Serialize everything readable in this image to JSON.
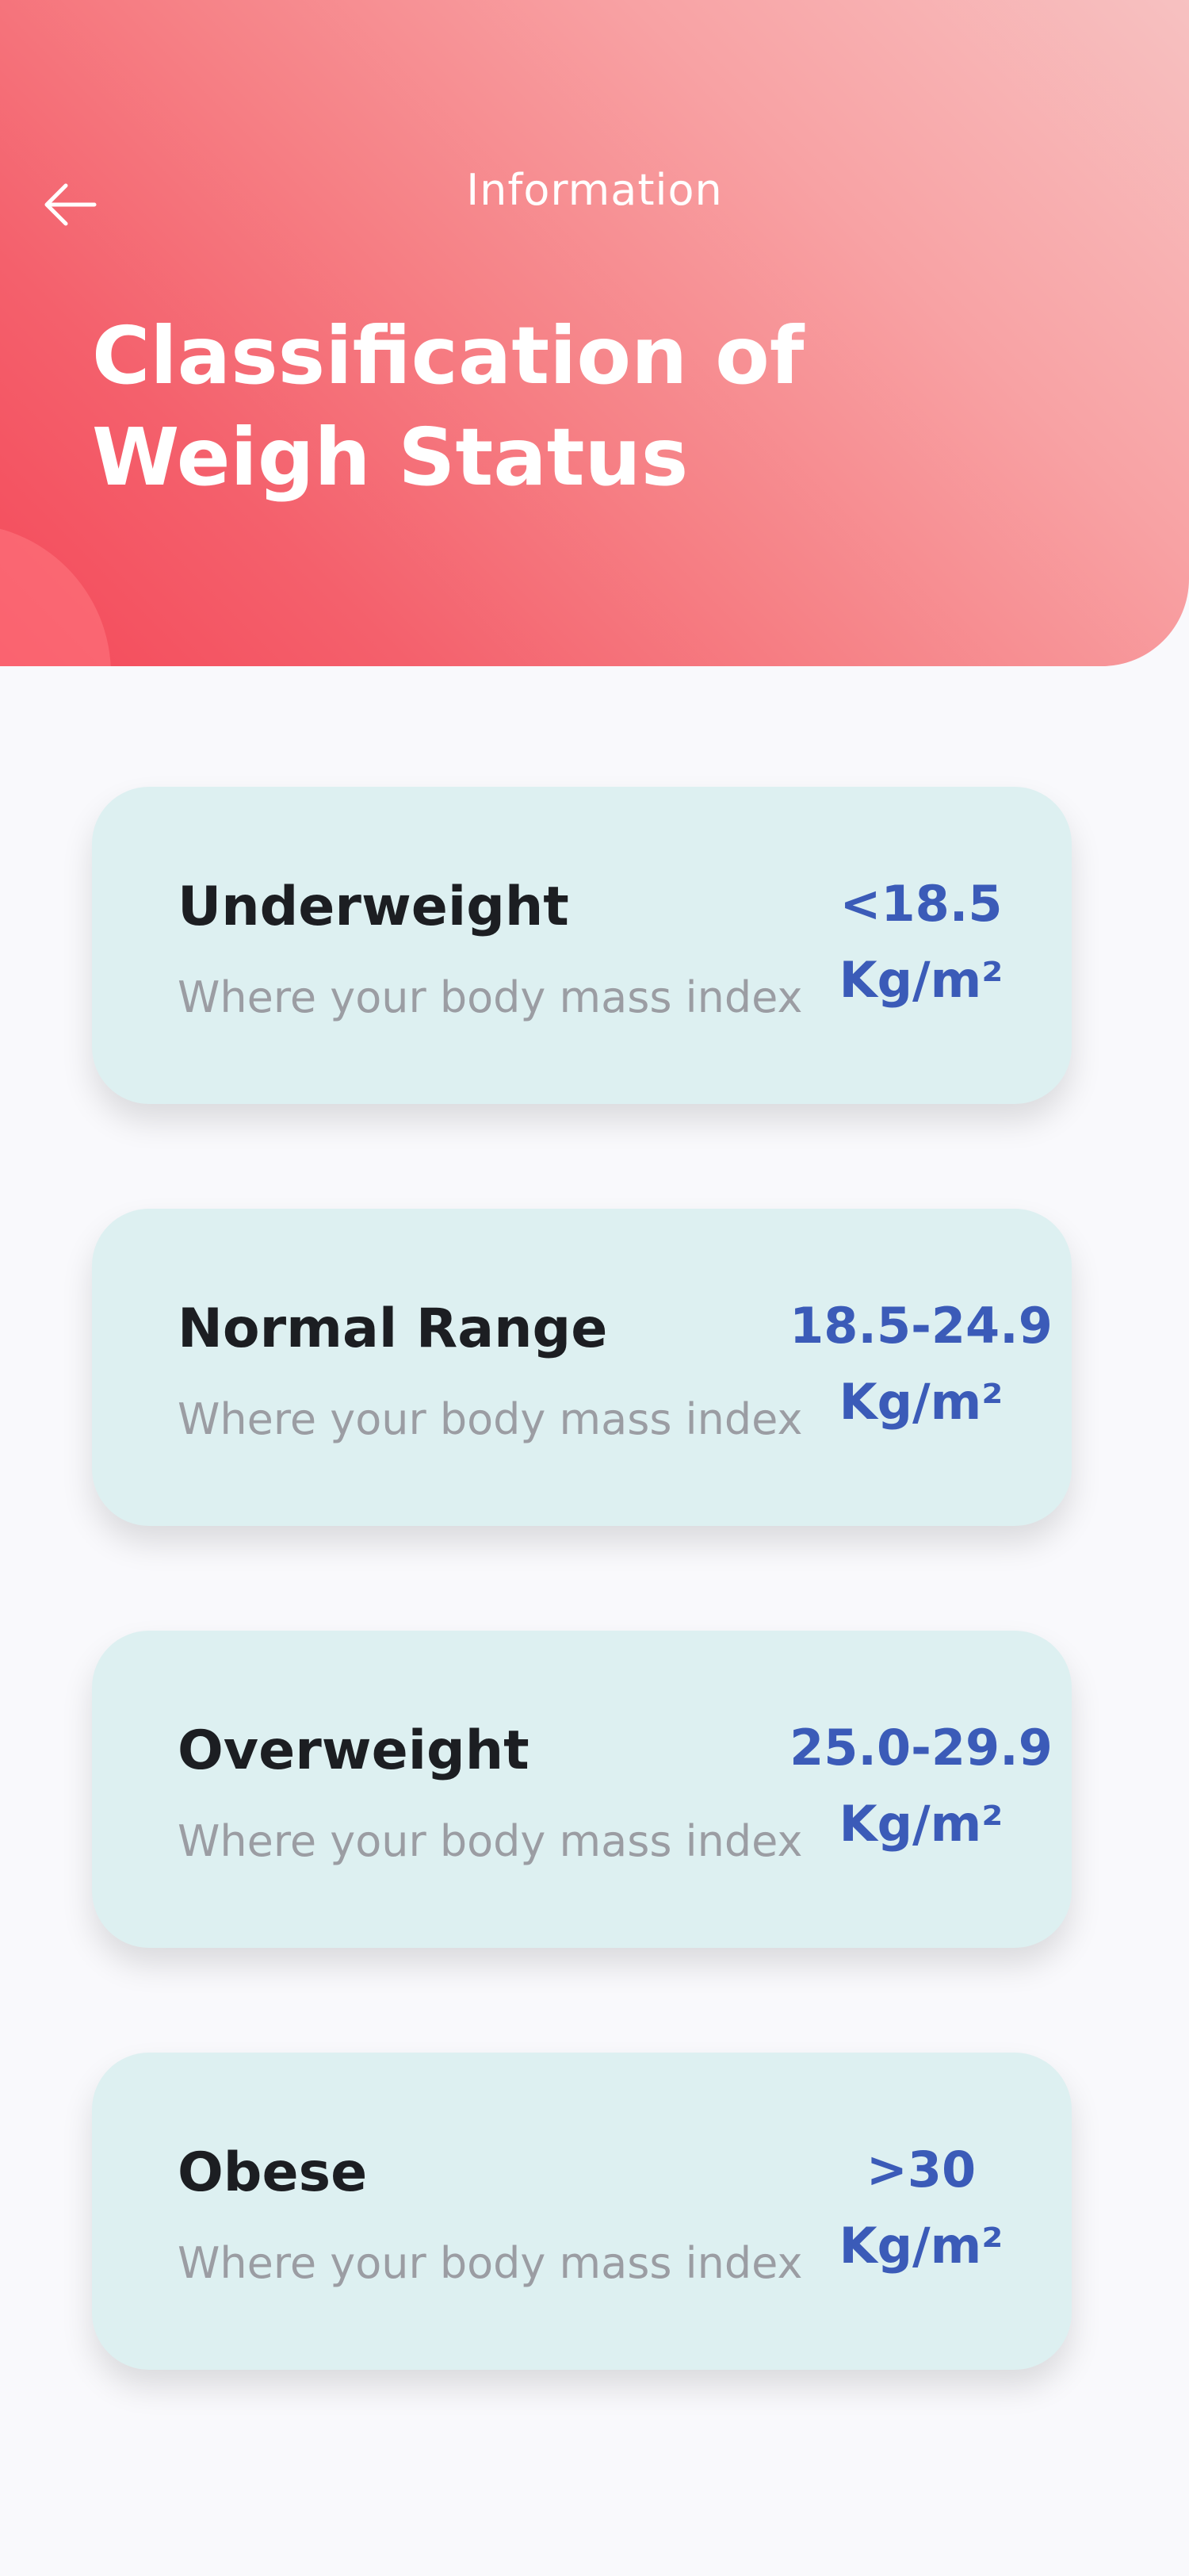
{
  "header": {
    "back_icon": "arrow-left-icon",
    "title": "Information",
    "page_title_line1": "Classification of",
    "page_title_line2": "Weigh Status",
    "gradient_colors": [
      "#f44a5a",
      "#f7c1c1"
    ]
  },
  "cards": [
    {
      "title": "Underweight",
      "subtitle": "Where your body mass index",
      "value": "<18.5",
      "unit": "Kg/m²"
    },
    {
      "title": "Normal Range",
      "subtitle": "Where your body mass index",
      "value": "18.5-24.9",
      "unit": "Kg/m²"
    },
    {
      "title": "Overweight",
      "subtitle": "Where your body mass index",
      "value": "25.0-29.9",
      "unit": "Kg/m²"
    },
    {
      "title": "Obese",
      "subtitle": "Where your body mass index",
      "value": ">30",
      "unit": "Kg/m²"
    }
  ],
  "colors": {
    "card_bg": "#ddf0f1",
    "value_text": "#3b5bb8",
    "title_text": "#1c1e22",
    "subtitle_text": "#9b9da3",
    "page_bg": "#f9f9fc"
  }
}
